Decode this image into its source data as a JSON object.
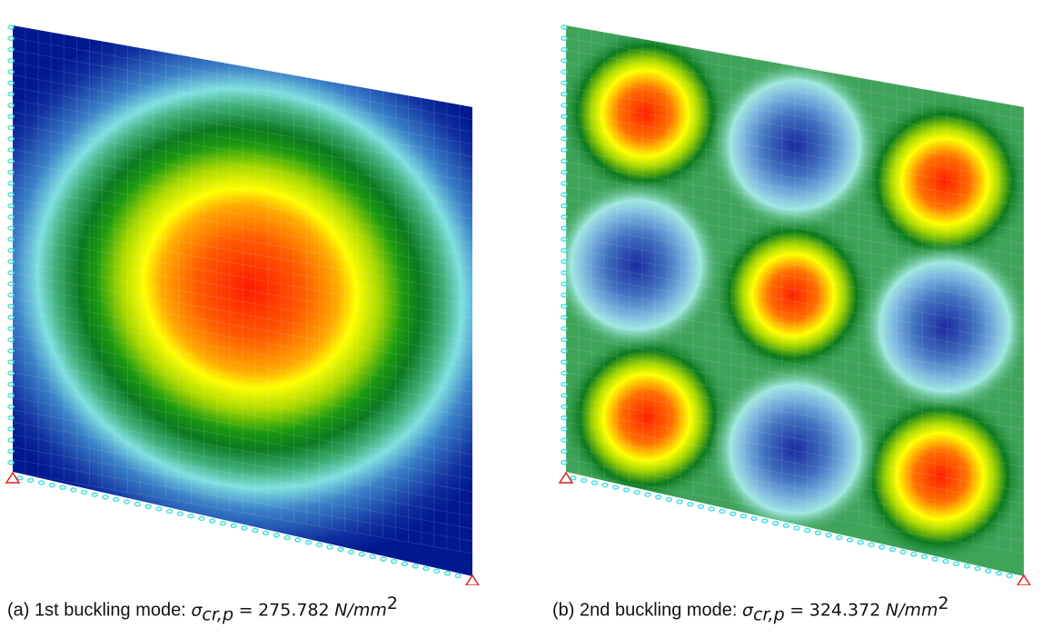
{
  "figures": [
    {
      "label": "(a)",
      "caption": "1st buckling mode:",
      "symbol": "σ",
      "subscript": "cr,p",
      "relation": "=",
      "value": "275.782",
      "unit": "N/mm",
      "unit_exponent": "2"
    },
    {
      "label": "(b)",
      "caption": "2nd buckling mode:",
      "symbol": "σ",
      "subscript": "cr,p",
      "relation": "=",
      "value": "324.372",
      "unit": "N/mm",
      "unit_exponent": "2"
    }
  ]
}
